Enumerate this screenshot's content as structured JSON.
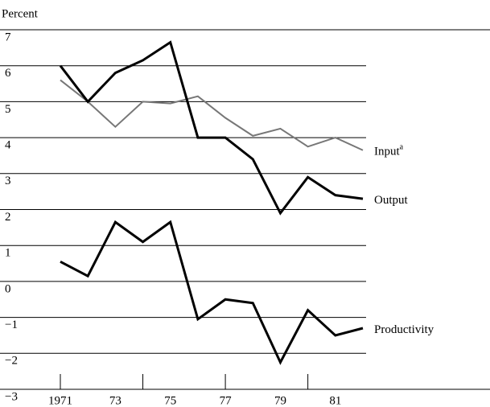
{
  "chart_data": {
    "type": "line",
    "y_axis_label": "Percent",
    "x": [
      1971,
      1972,
      1973,
      1974,
      1975,
      1976,
      1977,
      1978,
      1979,
      1980,
      1981,
      1982
    ],
    "series": [
      {
        "name": "Input",
        "footnote_mark": "a",
        "color": "#777777",
        "values": [
          5.6,
          5.0,
          4.3,
          5.0,
          4.95,
          5.15,
          4.55,
          4.05,
          4.25,
          3.75,
          4.0,
          3.65
        ]
      },
      {
        "name": "Output",
        "color": "#000000",
        "values": [
          6.0,
          5.0,
          5.8,
          6.15,
          6.65,
          4.0,
          4.0,
          3.4,
          1.9,
          2.9,
          2.4,
          2.3
        ]
      },
      {
        "name": "Productivity",
        "color": "#000000",
        "values": [
          0.55,
          0.15,
          1.65,
          1.1,
          1.65,
          -1.05,
          -0.5,
          -0.6,
          -2.25,
          -0.8,
          -1.5,
          -1.3
        ]
      }
    ],
    "xlim": [
      1971,
      1982
    ],
    "xticks": [
      1971,
      {
        "value": 1973,
        "label": "73"
      },
      {
        "value": 1975,
        "label": "75"
      },
      {
        "value": 1977,
        "label": "77"
      },
      {
        "value": 1979,
        "label": "79"
      },
      {
        "value": 1981,
        "label": "81"
      }
    ],
    "xtick_marks": [
      1971,
      1974,
      1977,
      1980
    ],
    "ylim": [
      -3,
      7
    ],
    "yticks": [
      {
        "value": -3,
        "label": "−3"
      },
      {
        "value": -2,
        "label": "−2"
      },
      {
        "value": -1,
        "label": "−1"
      },
      0,
      1,
      2,
      3,
      4,
      5,
      6,
      7
    ],
    "grid": true
  }
}
